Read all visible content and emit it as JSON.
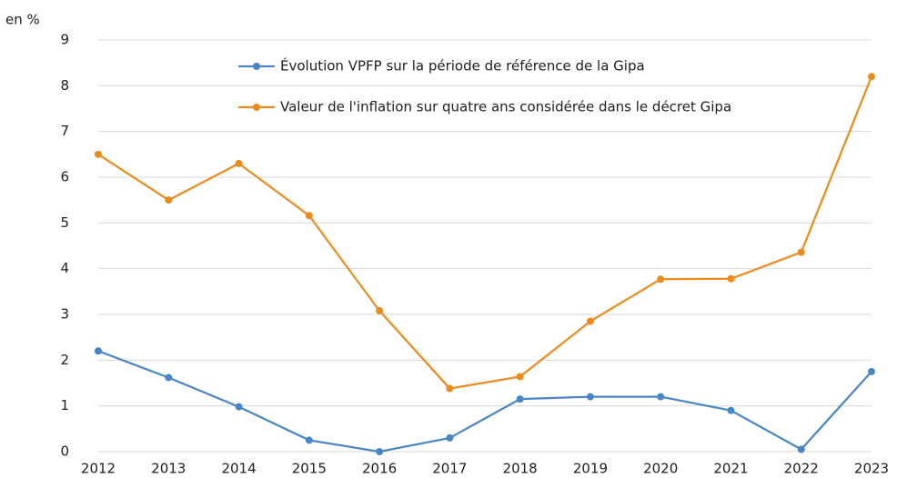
{
  "chart_data": {
    "type": "line",
    "y_unit_label": "en %",
    "categories": [
      "2012",
      "2013",
      "2014",
      "2015",
      "2016",
      "2017",
      "2018",
      "2019",
      "2020",
      "2021",
      "2022",
      "2023"
    ],
    "series": [
      {
        "name": "Évolution VPFP sur la période de référence de la Gipa",
        "color": "#4a86c5",
        "values": [
          2.2,
          1.62,
          0.98,
          0.25,
          0,
          0.3,
          1.15,
          1.2,
          1.2,
          0.9,
          0.05,
          1.75
        ]
      },
      {
        "name": "Valeur de l'inflation sur quatre ans considérée dans le décret Gipa",
        "color": "#ec8a1c",
        "values": [
          6.5,
          5.5,
          6.3,
          5.16,
          3.08,
          1.38,
          1.64,
          2.85,
          3.77,
          3.78,
          4.36,
          8.2
        ]
      }
    ],
    "ylim": [
      0,
      9
    ],
    "yticks": [
      0,
      1,
      2,
      3,
      4,
      5,
      6,
      7,
      8,
      9
    ],
    "grid": true
  }
}
